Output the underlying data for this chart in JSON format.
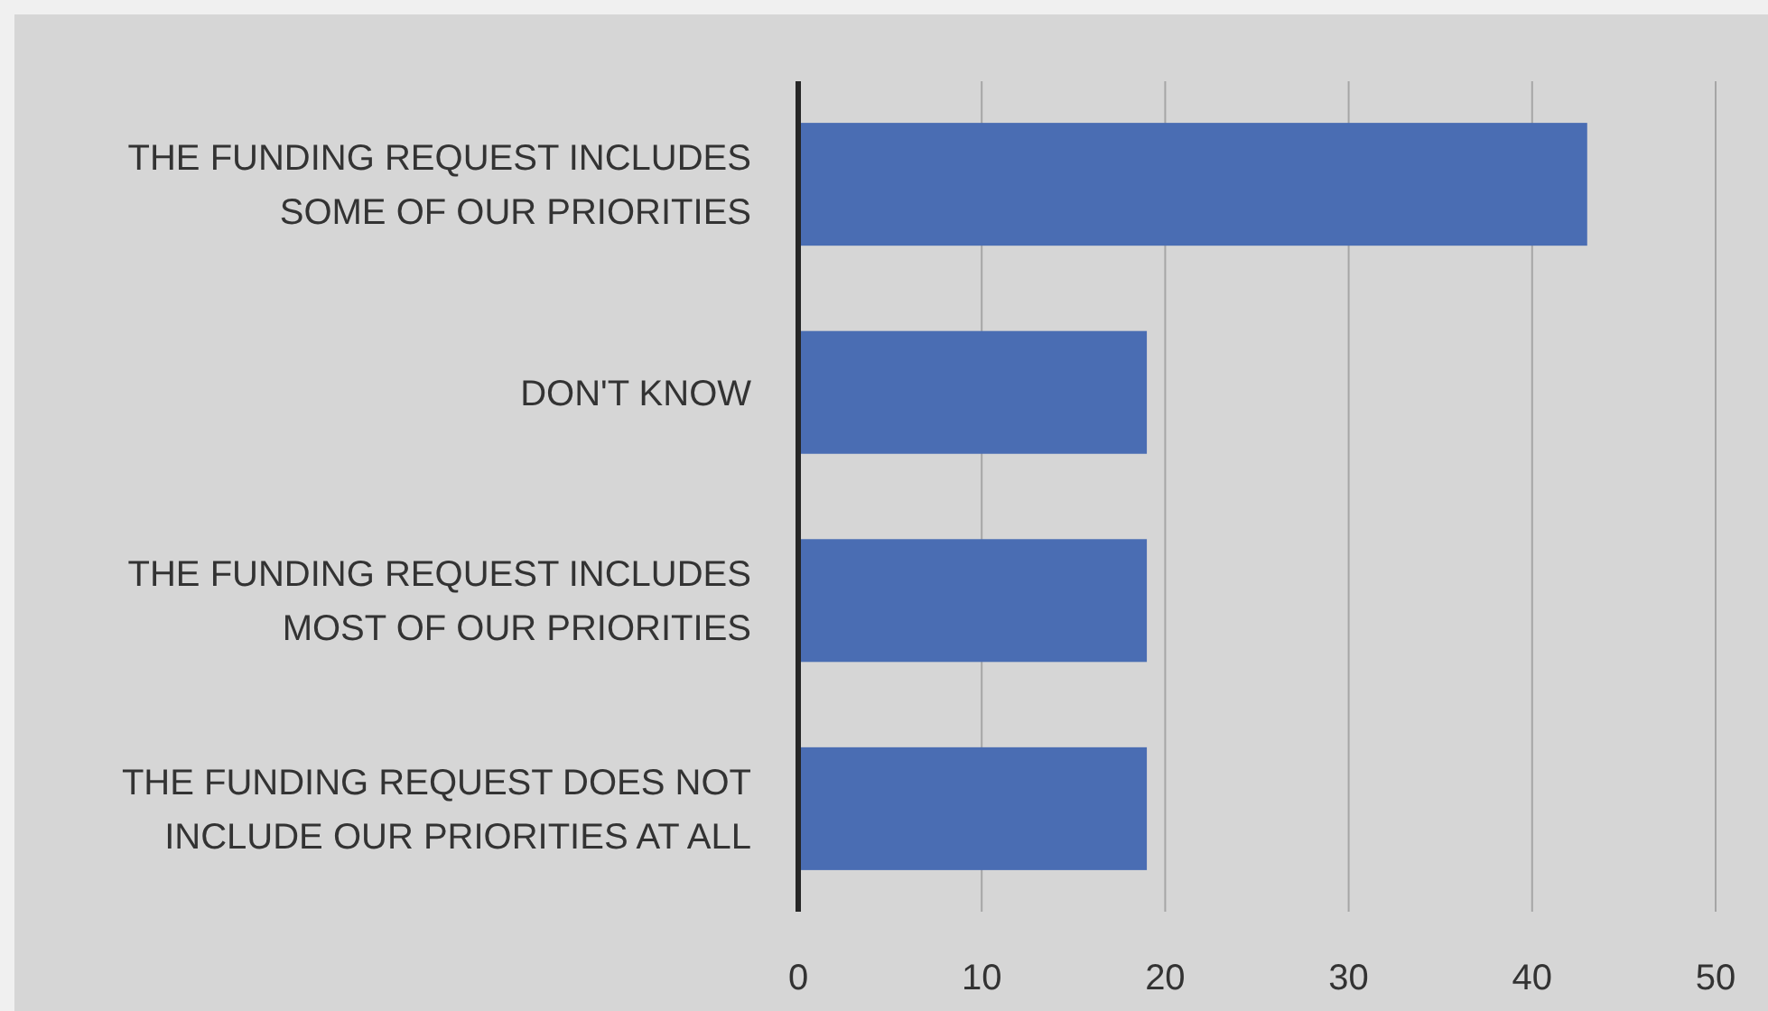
{
  "chart_data": {
    "type": "bar",
    "orientation": "horizontal",
    "categories": [
      "THE FUNDING REQUEST INCLUDES SOME OF OUR PRIORITIES",
      "DON'T KNOW",
      "THE FUNDING REQUEST INCLUDES MOST OF OUR PRIORITIES",
      "THE FUNDING REQUEST DOES NOT INCLUDE OUR PRIORITIES AT ALL"
    ],
    "values": [
      43,
      19,
      19,
      19
    ],
    "color": "#4a6db3",
    "xlim": [
      0,
      50
    ],
    "xticks": [
      0,
      10,
      20,
      30,
      40,
      50
    ],
    "grid": "x"
  }
}
